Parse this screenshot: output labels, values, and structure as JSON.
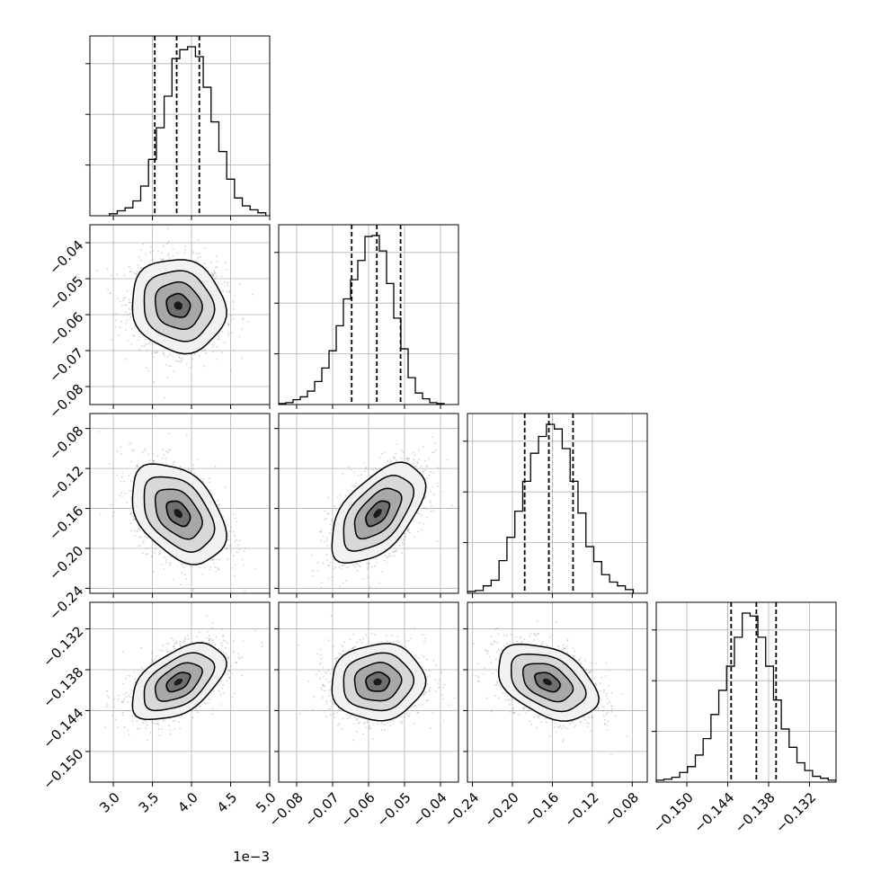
{
  "chart_data": {
    "type": "corner",
    "offset_text": "1e−3",
    "parameters": [
      {
        "xlim": [
          2.7,
          5.0
        ],
        "ticks": [
          3.0,
          3.5,
          4.0,
          4.5,
          5.0
        ],
        "tick_labels": [
          "3.0",
          "3.5",
          "4.0",
          "4.5",
          "5.0"
        ],
        "quantiles": [
          3.53,
          3.81,
          4.1
        ],
        "hist_range": [
          2.95,
          4.95
        ],
        "hist_counts": [
          2,
          5,
          8,
          15,
          30,
          57,
          89,
          121,
          159,
          168,
          171,
          161,
          130,
          95,
          65,
          37,
          18,
          10,
          6,
          3
        ]
      },
      {
        "xlim": [
          -0.085,
          -0.035
        ],
        "ticks": [
          -0.08,
          -0.07,
          -0.06,
          -0.05,
          -0.04
        ],
        "tick_labels": [
          "−0.08",
          "−0.07",
          "−0.06",
          "−0.05",
          "−0.04"
        ],
        "quantiles": [
          -0.0647,
          -0.0577,
          -0.0511
        ],
        "hist_range": [
          -0.085,
          -0.039
        ],
        "hist_counts": [
          1,
          2,
          5,
          8,
          14,
          24,
          38,
          56,
          82,
          110,
          130,
          150,
          175,
          176,
          160,
          126,
          90,
          58,
          28,
          12,
          6,
          2,
          1
        ]
      },
      {
        "xlim": [
          -0.245,
          -0.065
        ],
        "ticks": [
          -0.24,
          -0.2,
          -0.16,
          -0.12,
          -0.08
        ],
        "tick_labels": [
          "−0.24",
          "−0.20",
          "−0.16",
          "−0.12",
          "−0.08"
        ],
        "quantiles": [
          -0.1877,
          -0.1635,
          -0.1393
        ],
        "hist_range": [
          -0.245,
          -0.079
        ],
        "hist_counts": [
          2,
          3,
          8,
          14,
          35,
          60,
          88,
          120,
          150,
          168,
          181,
          176,
          155,
          120,
          86,
          50,
          34,
          20,
          12,
          8,
          4
        ]
      },
      {
        "xlim": [
          -0.1545,
          -0.1281
        ],
        "ticks": [
          -0.15,
          -0.144,
          -0.138,
          -0.132
        ],
        "tick_labels": [
          "−0.150",
          "−0.144",
          "−0.138",
          "−0.132"
        ],
        "quantiles": [
          -0.1435,
          -0.1398,
          -0.1369
        ],
        "hist_range": [
          -0.1545,
          -0.1281
        ],
        "hist_counts": [
          2,
          3,
          5,
          10,
          16,
          28,
          45,
          70,
          95,
          120,
          150,
          175,
          172,
          150,
          120,
          85,
          55,
          36,
          20,
          12,
          6,
          4,
          2
        ]
      }
    ],
    "panels": [
      {
        "row": 1,
        "col": 0,
        "mean": [
          3.83,
          -0.0575
        ],
        "sd": [
          0.3,
          0.0065
        ],
        "rho": -0.1
      },
      {
        "row": 2,
        "col": 0,
        "mean": [
          3.83,
          -0.165
        ],
        "sd": [
          0.3,
          0.025
        ],
        "rho": -0.4
      },
      {
        "row": 2,
        "col": 1,
        "mean": [
          -0.0575,
          -0.165
        ],
        "sd": [
          0.0065,
          0.025
        ],
        "rho": 0.55
      },
      {
        "row": 3,
        "col": 0,
        "mean": [
          3.83,
          -0.1398
        ],
        "sd": [
          0.3,
          0.0028
        ],
        "rho": 0.5
      },
      {
        "row": 3,
        "col": 1,
        "mean": [
          -0.0575,
          -0.1398
        ],
        "sd": [
          0.0065,
          0.0028
        ],
        "rho": 0.05
      },
      {
        "row": 3,
        "col": 2,
        "mean": [
          -0.165,
          -0.1398
        ],
        "sd": [
          0.025,
          0.0028
        ],
        "rho": -0.4
      }
    ],
    "colors": {
      "line": "#000000",
      "grid": "#b0b0b0",
      "points": "#808080",
      "frame": "#000000"
    },
    "grid": true,
    "show_quantiles": true,
    "contour_levels_sigma": [
      0.5,
      1.0,
      1.5,
      2.0
    ]
  }
}
